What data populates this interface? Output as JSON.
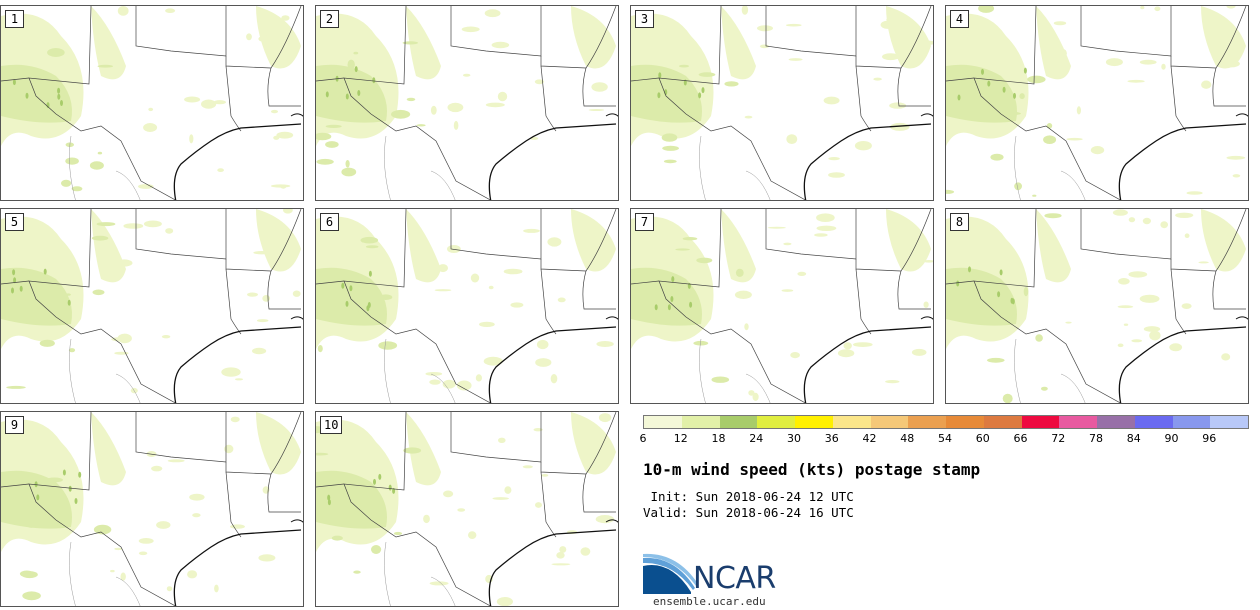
{
  "panels": [
    {
      "label": "1"
    },
    {
      "label": "2"
    },
    {
      "label": "3"
    },
    {
      "label": "4"
    },
    {
      "label": "5"
    },
    {
      "label": "6"
    },
    {
      "label": "7"
    },
    {
      "label": "8"
    },
    {
      "label": "9"
    },
    {
      "label": "10"
    }
  ],
  "colorbar": {
    "colors": [
      "#f4f8d8",
      "#e2f0a8",
      "#a8cc6a",
      "#e0ee40",
      "#fff000",
      "#fbe68a",
      "#f5c878",
      "#eba050",
      "#e78a38",
      "#dd7a40",
      "#ee0a40",
      "#e85aa0",
      "#9870a8",
      "#6a6af0",
      "#8898ee",
      "#b8c8f8"
    ],
    "ticks": [
      "6",
      "12",
      "18",
      "24",
      "30",
      "36",
      "42",
      "48",
      "54",
      "60",
      "66",
      "72",
      "78",
      "84",
      "90",
      "96"
    ]
  },
  "title": "10-m wind speed (kts) postage stamp",
  "init": " Init: Sun 2018-06-24 12 UTC",
  "valid": "Valid: Sun 2018-06-24 16 UTC",
  "logo": {
    "text": "NCAR",
    "url": "ensemble.ucar.edu",
    "colors": {
      "arc_dark": "#0a4f8f",
      "arc_light": "#5fa0d8",
      "text": "#1a3d6d"
    }
  },
  "map_colors": {
    "light": "#eef5c8",
    "mid": "#dcebaa",
    "dark": "#a8cc6a",
    "border": "#444444",
    "coast": "#111111"
  }
}
